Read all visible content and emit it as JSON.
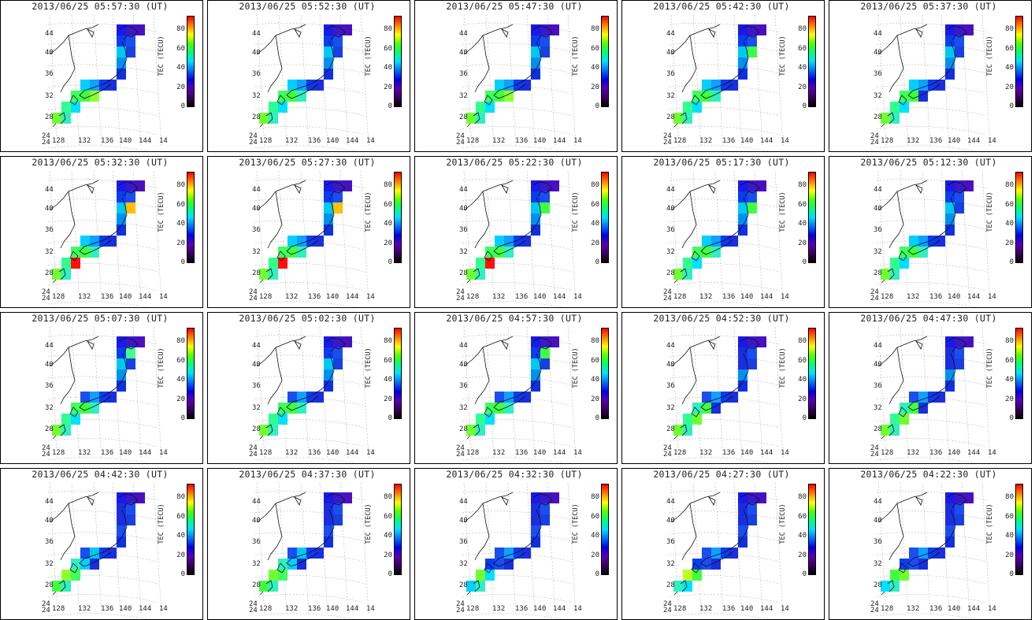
{
  "figure": {
    "cbar_label": "TEC (TECU)",
    "cbar_ticks": [
      "0",
      "20",
      "40",
      "60",
      "80"
    ],
    "lat_labels": [
      "44",
      "40",
      "36",
      "32",
      "28",
      "24"
    ],
    "lon_labels": [
      "128",
      "132",
      "136",
      "140",
      "144",
      "14"
    ],
    "lon_corner": "24",
    "colormap": [
      "#000000",
      "#5a00b4",
      "#0000e6",
      "#0070ff",
      "#00e0ff",
      "#00ff7a",
      "#55ff00",
      "#ffff00",
      "#ff8000",
      "#ff0000"
    ]
  },
  "panels": [
    {
      "title": "2013/06/25 05:57:30 (UT)",
      "cells": [
        [
          "#1919e8",
          "#3a18c8",
          "#4a10c0"
        ],
        [
          "#0a3cf0",
          "#1a4ef0",
          "#1840e0"
        ],
        [
          "#00c8f0",
          "#0090f0",
          "#1030e0"
        ],
        [
          "#00d0ff",
          "#10a0ff",
          "#0a3cf0",
          "#1a2ee0"
        ],
        [
          "#40ff60",
          "#40ff40",
          "#90ff30"
        ],
        [
          "#30ff90",
          "#00e0ff"
        ],
        [
          "#70ff30",
          "#30f0c0"
        ]
      ]
    },
    {
      "title": "2013/06/25 05:52:30 (UT)",
      "cells": [
        [
          "#1919e8",
          "#3a18c8",
          "#4a10c0"
        ],
        [
          "#0a3cf0",
          "#1a4ef0",
          "#1840e0"
        ],
        [
          "#00c8f0",
          "#0090f0",
          "#1030e0"
        ],
        [
          "#00d0ff",
          "#10a0ff",
          "#0a3cf0",
          "#1a2ee0"
        ],
        [
          "#40ff60",
          "#40ff40",
          "#30f0c0"
        ],
        [
          "#30ff90",
          "#00e0ff"
        ],
        [
          "#70ff30",
          "#30f0c0"
        ]
      ]
    },
    {
      "title": "2013/06/25 05:47:30 (UT)",
      "cells": [
        [
          "#1919e8",
          "#3a18c8",
          "#4a10c0"
        ],
        [
          "#0a3cf0",
          "#1a4ef0",
          "#1840e0"
        ],
        [
          "#00c8f0",
          "#0090f0",
          "#1030e0"
        ],
        [
          "#00d0ff",
          "#10a0ff",
          "#0a3cf0",
          "#1a2ee0"
        ],
        [
          "#40ff60",
          "#40ff40",
          "#90ff30"
        ],
        [
          "#30ff90",
          "#00e0ff"
        ],
        [
          "#70ff30",
          "#30f0c0"
        ]
      ]
    },
    {
      "title": "2013/06/25 05:42:30 (UT)",
      "cells": [
        [
          "#1919e8",
          "#3a18c8",
          "#4a10c0"
        ],
        [
          "#0a3cf0",
          "#1a4ef0",
          "#40ff40"
        ],
        [
          "#00c8f0",
          "#0090f0",
          "#1030e0"
        ],
        [
          "#00d0ff",
          "#10a0ff",
          "#0a3cf0",
          "#1a2ee0"
        ],
        [
          "#40ff60",
          "#40ff40",
          "#30f0c0"
        ],
        [
          "#30ff90",
          "#00e0ff"
        ],
        [
          "#70ff30",
          "#30f0c0"
        ]
      ]
    },
    {
      "title": "2013/06/25 05:37:30 (UT)",
      "cells": [
        [
          "#1919e8",
          "#3a18c8",
          "#4a10c0"
        ],
        [
          "#0a3cf0",
          "#1a4ef0",
          "#1840e0"
        ],
        [
          "#00c8f0",
          "#0090f0",
          "#1030e0"
        ],
        [
          "#00d0ff",
          "#10a0ff",
          "#0a3cf0",
          "#1a2ee0"
        ],
        [
          "#40ff60",
          "#40ff40",
          "#1a2ee0"
        ],
        [
          "#30ff90",
          "#00e0ff"
        ],
        [
          "#70ff30",
          "#30f0c0"
        ]
      ]
    },
    {
      "title": "2013/06/25 05:32:30 (UT)",
      "cells": [
        [
          "#1919e8",
          "#3a18c8",
          "#4a10c0"
        ],
        [
          "#0a3cf0",
          "#1a4ef0",
          "#ffc000"
        ],
        [
          "#00c8f0",
          "#0090f0",
          "#1030e0"
        ],
        [
          "#00d0ff",
          "#10a0ff",
          "#0a3cf0",
          "#1a2ee0"
        ],
        [
          "#40ff60",
          "#40ff40",
          "#30f0c0"
        ],
        [
          "#30ff90",
          "#ff1010"
        ],
        [
          "#70ff30",
          "#30f0c0"
        ]
      ]
    },
    {
      "title": "2013/06/25 05:27:30 (UT)",
      "cells": [
        [
          "#1919e8",
          "#3a18c8",
          "#4a10c0"
        ],
        [
          "#0a3cf0",
          "#1a4ef0",
          "#ffc000"
        ],
        [
          "#00c8f0",
          "#0090f0",
          "#1030e0"
        ],
        [
          "#00d0ff",
          "#10a0ff",
          "#0a3cf0",
          "#1a2ee0"
        ],
        [
          "#40ff60",
          "#40ff40",
          "#30f0c0"
        ],
        [
          "#30ff90",
          "#ff1010"
        ],
        [
          "#70ff30",
          "#30f0c0"
        ]
      ]
    },
    {
      "title": "2013/06/25 05:22:30 (UT)",
      "cells": [
        [
          "#1919e8",
          "#3a18c8",
          "#4a10c0"
        ],
        [
          "#0a3cf0",
          "#1a4ef0",
          "#40ff40"
        ],
        [
          "#00c8f0",
          "#0090f0",
          "#1030e0"
        ],
        [
          "#00d0ff",
          "#10a0ff",
          "#0a3cf0",
          "#1a2ee0"
        ],
        [
          "#40ff60",
          "#40ff40",
          "#30f0c0"
        ],
        [
          "#30ff90",
          "#ff1010"
        ],
        [
          "#70ff30",
          "#30f0c0"
        ]
      ]
    },
    {
      "title": "2013/06/25 05:17:30 (UT)",
      "cells": [
        [
          "#1919e8",
          "#3a18c8",
          "#4a10c0"
        ],
        [
          "#0a3cf0",
          "#1a4ef0",
          "#40ff40"
        ],
        [
          "#00c8f0",
          "#0090f0",
          "#1030e0"
        ],
        [
          "#00d0ff",
          "#10a0ff",
          "#0a3cf0",
          "#1a2ee0"
        ],
        [
          "#40ff60",
          "#40ff40",
          "#30f0c0"
        ],
        [
          "#30ff90",
          "#00e0ff"
        ],
        [
          "#70ff30",
          "#30f0c0"
        ]
      ]
    },
    {
      "title": "2013/06/25 05:12:30 (UT)",
      "cells": [
        [
          "#1919e8",
          "#3a18c8",
          "#4a10c0"
        ],
        [
          "#0a3cf0",
          "#1a4ef0",
          "#1840e0"
        ],
        [
          "#00c8f0",
          "#0090f0",
          "#1030e0"
        ],
        [
          "#00d0ff",
          "#10a0ff",
          "#0a3cf0",
          "#1a2ee0"
        ],
        [
          "#40ff60",
          "#40ff40",
          "#30f0c0"
        ],
        [
          "#30ff90",
          "#00e0ff"
        ],
        [
          "#70ff30",
          "#30f0c0"
        ]
      ]
    },
    {
      "title": "2013/06/25 05:07:30 (UT)",
      "cells": [
        [
          "#1919e8",
          "#3a18c8",
          "#4a10c0"
        ],
        [
          "#0a3cf0",
          "#40ff90",
          "#1840e0"
        ],
        [
          "#00c8f0",
          "#0090f0",
          "#1030e0"
        ],
        [
          "#1a4ef0",
          "#10a0ff",
          "#0a3cf0",
          "#1a2ee0"
        ],
        [
          "#40ff60",
          "#40ff40",
          "#30f0c0"
        ],
        [
          "#30ff90",
          "#00e0ff"
        ],
        [
          "#70ff30",
          "#30f0c0"
        ]
      ]
    },
    {
      "title": "2013/06/25 05:02:30 (UT)",
      "cells": [
        [
          "#1919e8",
          "#3a18c8",
          "#4a10c0"
        ],
        [
          "#0a3cf0",
          "#1a4ef0",
          "#1840e0"
        ],
        [
          "#00c8f0",
          "#0090f0",
          "#1030e0"
        ],
        [
          "#1a4ef0",
          "#10a0ff",
          "#0a3cf0",
          "#1a2ee0"
        ],
        [
          "#40ff60",
          "#40ff40",
          "#30f0c0"
        ],
        [
          "#30ff90",
          "#00e0ff"
        ],
        [
          "#70ff30",
          "#30f0c0"
        ]
      ]
    },
    {
      "title": "2013/06/25 04:57:30 (UT)",
      "cells": [
        [
          "#1919e8",
          "#3a18c8",
          "#4a10c0"
        ],
        [
          "#0a3cf0",
          "#40ff40",
          "#1840e0"
        ],
        [
          "#00c8f0",
          "#0090f0",
          "#1030e0"
        ],
        [
          "#1a4ef0",
          "#10a0ff",
          "#0a3cf0",
          "#1a2ee0"
        ],
        [
          "#40ff60",
          "#40ff40",
          "#30f0c0"
        ],
        [
          "#30ff90",
          "#00e0ff"
        ],
        [
          "#70ff30",
          "#30f0c0"
        ]
      ]
    },
    {
      "title": "2013/06/25 04:52:30 (UT)",
      "cells": [
        [
          "#1919e8",
          "#3a18c8",
          "#4a10c0"
        ],
        [
          "#1a2ee0",
          "#1a4ef0",
          "#1840e0"
        ],
        [
          "#1a2ee0",
          "#0090f0",
          "#1030e0"
        ],
        [
          "#1a4ef0",
          "#10a0ff",
          "#0a3cf0",
          "#1a2ee0"
        ],
        [
          "#30f0c0",
          "#40ff40",
          "#1a2ee0"
        ],
        [
          "#30ff90",
          "#70ff30"
        ],
        [
          "#70ff30",
          "#30f0c0"
        ]
      ]
    },
    {
      "title": "2013/06/25 04:47:30 (UT)",
      "cells": [
        [
          "#1919e8",
          "#3a18c8",
          "#4a10c0"
        ],
        [
          "#1a2ee0",
          "#1a4ef0",
          "#1840e0"
        ],
        [
          "#1a2ee0",
          "#0090f0",
          "#1030e0"
        ],
        [
          "#1a4ef0",
          "#10a0ff",
          "#0a3cf0",
          "#1a2ee0"
        ],
        [
          "#30f0c0",
          "#40ff40",
          "#1a2ee0"
        ],
        [
          "#30ff90",
          "#70ff30"
        ],
        [
          "#70ff30",
          "#30f0c0"
        ]
      ]
    },
    {
      "title": "2013/06/25 04:42:30 (UT)",
      "cells": [
        [
          "#1919e8",
          "#3a18c8",
          "#4a10c0"
        ],
        [
          "#1a2ee0",
          "#1a4ef0",
          "#1840e0"
        ],
        [
          "#1a2ee0",
          "#1a4ef0",
          "#1030e0"
        ],
        [
          "#1a4ef0",
          "#00c8f0",
          "#0a3cf0",
          "#1a2ee0"
        ],
        [
          "#30f0c0",
          "#00d0ff",
          "#1a2ee0"
        ],
        [
          "#90ff30",
          "#40ff60"
        ],
        [
          "#40ff40",
          "#30f0c0"
        ]
      ]
    },
    {
      "title": "2013/06/25 04:37:30 (UT)",
      "cells": [
        [
          "#1919e8",
          "#3a18c8",
          "#4a10c0"
        ],
        [
          "#1a2ee0",
          "#1a4ef0",
          "#1840e0"
        ],
        [
          "#1a2ee0",
          "#1a4ef0",
          "#1030e0"
        ],
        [
          "#1a4ef0",
          "#00c8f0",
          "#0a3cf0",
          "#1a2ee0"
        ],
        [
          "#30f0c0",
          "#00d0ff",
          "#1a2ee0"
        ],
        [
          "#70ff30",
          "#40ff60"
        ],
        [
          "#40ff40",
          "#30f0c0"
        ]
      ]
    },
    {
      "title": "2013/06/25 04:32:30 (UT)",
      "cells": [
        [
          "#1919e8",
          "#3a18c8",
          "#4a10c0"
        ],
        [
          "#1a2ee0",
          "#1a4ef0",
          "#1840e0"
        ],
        [
          "#1a2ee0",
          "#1a4ef0",
          "#1030e0"
        ],
        [
          "#1a4ef0",
          "#10a0ff",
          "#0a3cf0",
          "#1a2ee0"
        ],
        [
          "#0a3cf0",
          "#1a4ef0",
          "#1a2ee0"
        ],
        [
          "#70ff30",
          "#00e0ff"
        ],
        [
          "#00d0ff",
          "#30f0c0"
        ]
      ]
    },
    {
      "title": "2013/06/25 04:27:30 (UT)",
      "cells": [
        [
          "#1919e8",
          "#3a18c8",
          "#4a10c0"
        ],
        [
          "#1a2ee0",
          "#1a4ef0",
          "#1840e0"
        ],
        [
          "#1a2ee0",
          "#1a4ef0",
          "#1030e0"
        ],
        [
          "#1a4ef0",
          "#10a0ff",
          "#0a3cf0",
          "#1a2ee0"
        ],
        [
          "#0a3cf0",
          "#1a4ef0",
          "#1a2ee0"
        ],
        [
          "#c0ff20",
          "#40ff40"
        ],
        [
          "#30f0c0",
          "#00e0ff"
        ]
      ]
    },
    {
      "title": "2013/06/25 04:22:30 (UT)",
      "cells": [
        [
          "#1919e8",
          "#3a18c8",
          "#4a10c0"
        ],
        [
          "#1a2ee0",
          "#1a4ef0",
          "#1840e0"
        ],
        [
          "#1a2ee0",
          "#1a4ef0",
          "#1030e0"
        ],
        [
          "#1a4ef0",
          "#10a0ff",
          "#0a3cf0",
          "#1a2ee0"
        ],
        [
          "#0a3cf0",
          "#1a4ef0",
          "#1a2ee0"
        ],
        [
          "#40ff40",
          "#70ff30"
        ],
        [
          "#00e0ff",
          "#30f0c0"
        ]
      ]
    }
  ]
}
